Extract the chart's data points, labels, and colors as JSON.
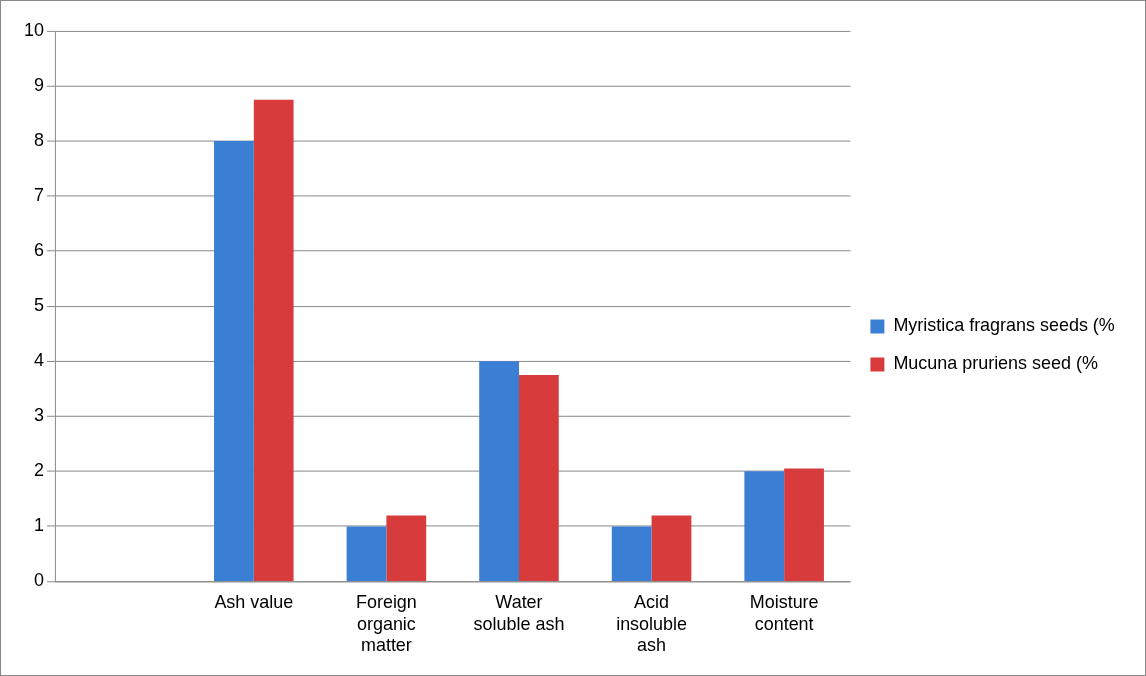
{
  "chart_data": {
    "type": "bar",
    "categories": [
      null,
      "Ash value",
      "Foreign organic matter",
      "Water soluble ash",
      "Acid insoluble ash",
      "Moisture content"
    ],
    "series": [
      {
        "name": "Myristica fragrans seeds (%",
        "color": "#3b7fd4",
        "values": [
          null,
          8,
          1,
          4,
          1,
          2
        ]
      },
      {
        "name": "Mucuna pruriens seed (%",
        "color": "#d83b3b",
        "values": [
          null,
          8.75,
          1.2,
          3.75,
          1.2,
          2.05
        ]
      }
    ],
    "ylim": [
      0,
      10
    ],
    "yticks": [
      0,
      1,
      2,
      3,
      4,
      5,
      6,
      7,
      8,
      9,
      10
    ],
    "grid": "y",
    "legend": "right"
  }
}
